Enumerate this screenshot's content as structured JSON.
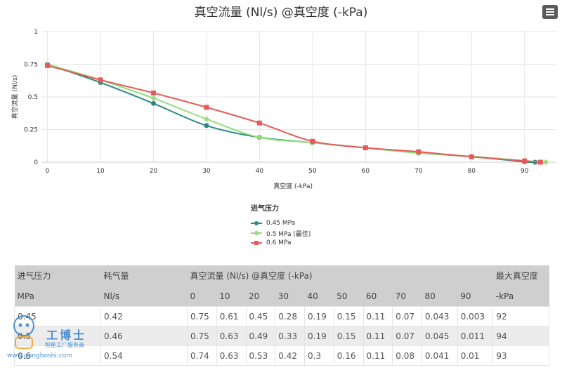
{
  "chart_data": {
    "type": "line",
    "title": "真空流量 (Nl/s) @真空度 (-kPa)",
    "xlabel": "真空度 (-kPa)",
    "ylabel": "真空流量 (Nl/s)",
    "xlim": [
      -1,
      96
    ],
    "ylim": [
      0,
      1
    ],
    "x_ticks": [
      0,
      10,
      20,
      30,
      40,
      50,
      60,
      70,
      80,
      90
    ],
    "y_ticks": [
      0,
      0.25,
      0.5,
      0.75,
      1
    ],
    "y_tick_labels": [
      "0",
      "0.25",
      "0.5",
      "0.75",
      "1"
    ],
    "grid": true,
    "legend_position": "bottom-center",
    "legend_title": "进气压力",
    "series": [
      {
        "name": "0.45 MPa",
        "color": "#2a8a82",
        "marker": "circle",
        "x": [
          0,
          10,
          20,
          30,
          40,
          50,
          60,
          70,
          80,
          90,
          92
        ],
        "y": [
          0.75,
          0.61,
          0.45,
          0.28,
          0.19,
          0.15,
          0.11,
          0.07,
          0.043,
          0.003,
          0
        ]
      },
      {
        "name": "0.5 MPa (最佳)",
        "color": "#8fe07a",
        "marker": "diamond",
        "x": [
          0,
          10,
          20,
          30,
          40,
          50,
          60,
          70,
          80,
          90,
          94
        ],
        "y": [
          0.75,
          0.63,
          0.49,
          0.33,
          0.19,
          0.15,
          0.11,
          0.07,
          0.045,
          0.011,
          0
        ]
      },
      {
        "name": "0.6 MPa",
        "color": "#e85a5a",
        "marker": "square",
        "x": [
          0,
          10,
          20,
          30,
          40,
          50,
          60,
          70,
          80,
          90,
          93
        ],
        "y": [
          0.74,
          0.63,
          0.53,
          0.42,
          0.3,
          0.16,
          0.11,
          0.08,
          0.041,
          0.01,
          0
        ]
      }
    ]
  },
  "table": {
    "header1": [
      "进气压力",
      "耗气量",
      "真空流量 (Nl/s) @真空度 (-kPa)",
      "最大真空度"
    ],
    "header2": [
      "MPa",
      "Nl/s",
      "0",
      "10",
      "20",
      "30",
      "40",
      "50",
      "60",
      "70",
      "80",
      "90",
      "-kPa"
    ],
    "rows": [
      [
        "0.45",
        "0.42",
        "0.75",
        "0.61",
        "0.45",
        "0.28",
        "0.19",
        "0.15",
        "0.11",
        "0.07",
        "0.043",
        "0.003",
        "92"
      ],
      [
        "0.5",
        "0.46",
        "0.75",
        "0.63",
        "0.49",
        "0.33",
        "0.19",
        "0.15",
        "0.11",
        "0.07",
        "0.045",
        "0.011",
        "94"
      ],
      [
        "0.6",
        "0.54",
        "0.74",
        "0.63",
        "0.53",
        "0.42",
        "0.3",
        "0.16",
        "0.11",
        "0.08",
        "0.041",
        "0.01",
        "93"
      ]
    ]
  },
  "watermark": {
    "brand": "工博士",
    "sub": "智能工厂服务商",
    "url": "www.gongboshi.com"
  },
  "icons": {
    "menu": "hamburger-menu-icon"
  }
}
